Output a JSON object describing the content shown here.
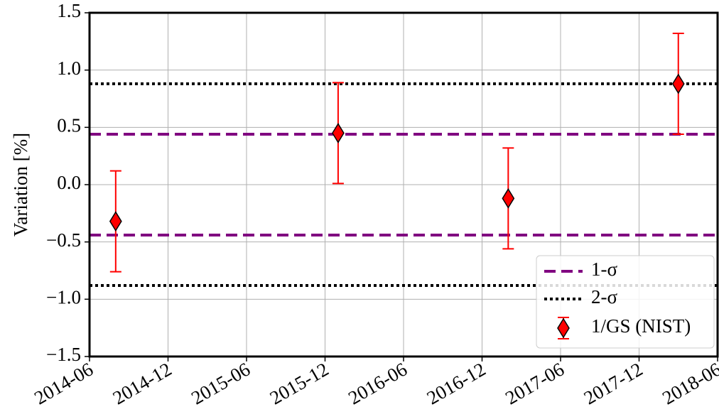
{
  "chart_data": {
    "type": "errorbar",
    "ylabel": "Variation [%]",
    "x": [
      "2014-08",
      "2016-01",
      "2017-02",
      "2018-03"
    ],
    "xlim": [
      "2014-06",
      "2018-06"
    ],
    "xticks": [
      "2014-06",
      "2014-12",
      "2015-06",
      "2015-12",
      "2016-06",
      "2016-12",
      "2017-06",
      "2017-12",
      "2018-06"
    ],
    "ylim": [
      -1.5,
      1.5
    ],
    "yticks": [
      {
        "value": -1.5,
        "label": "−1.5"
      },
      {
        "value": -1.0,
        "label": "−1.0"
      },
      {
        "value": -0.5,
        "label": "−0.5"
      },
      {
        "value": 0,
        "label": "0.0"
      },
      0.5,
      {
        "value": 1.0,
        "label": "1.0"
      },
      1.5
    ],
    "grid": true,
    "legend": "lower right",
    "hlines": [
      {
        "name": "1-σ",
        "color": "#800080",
        "style": "dashed",
        "values": [
          0.44,
          -0.44
        ]
      },
      {
        "name": "2-σ",
        "color": "#000000",
        "style": "dotted",
        "values": [
          0.88,
          -0.88
        ]
      }
    ],
    "series": [
      {
        "name": "1/GS (NIST)",
        "color": "#ff0000",
        "values": [
          -0.32,
          0.45,
          -0.12,
          0.88
        ],
        "errors": [
          0.44,
          0.44,
          0.44,
          0.44
        ]
      }
    ]
  }
}
